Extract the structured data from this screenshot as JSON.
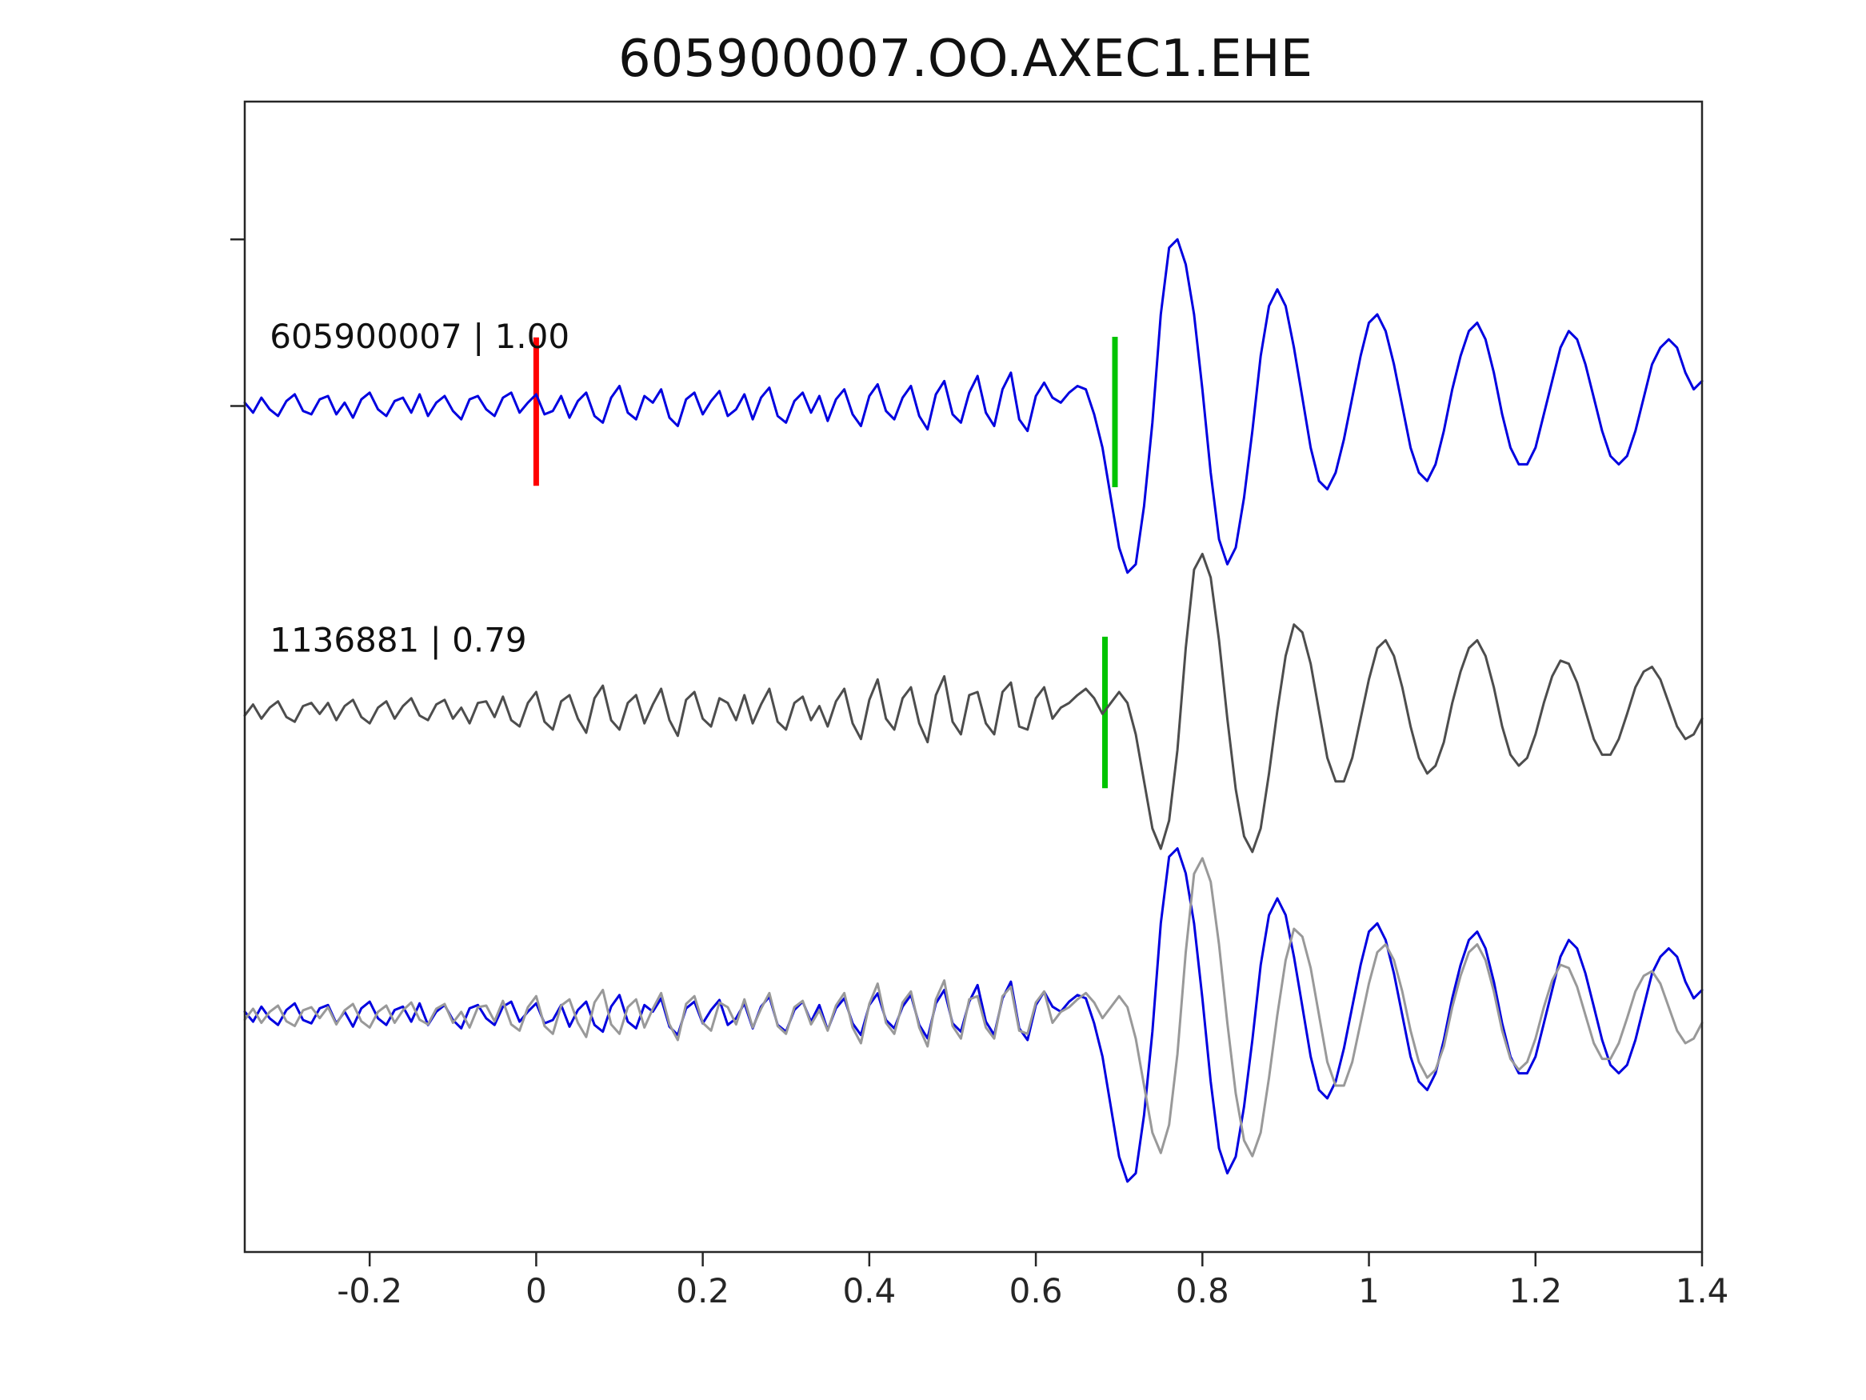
{
  "title": "605900007.OO.AXEC1.EHE",
  "chart_data": {
    "type": "line",
    "title": "605900007.OO.AXEC1.EHE",
    "xlabel": "",
    "ylabel": "",
    "xlim": [
      -0.35,
      1.4
    ],
    "grid": false,
    "axis_color": "#262626",
    "x_ticks": [
      {
        "value": -0.2,
        "label": "-0.2"
      },
      {
        "value": 0,
        "label": "0"
      },
      {
        "value": 0.2,
        "label": "0.2"
      },
      {
        "value": 0.4,
        "label": "0.4"
      },
      {
        "value": 0.6,
        "label": "0.6"
      },
      {
        "value": 0.8,
        "label": "0.8"
      },
      {
        "value": 1,
        "label": "1"
      },
      {
        "value": 1.2,
        "label": "1.2"
      },
      {
        "value": 1.4,
        "label": "1.4"
      }
    ],
    "y_tick_values": [
      1,
      0
    ],
    "traces": [
      {
        "id": "605900007",
        "label": "605900007 | 1.00",
        "color": "#0000e0",
        "baseline_frac": 0.29,
        "amplitude_frac": 0.119,
        "x0": -0.35,
        "dx": 0.01,
        "label_pos": {
          "x": -0.32,
          "y_frac": 0.2406
        },
        "values": [
          0.02,
          -0.04,
          0.05,
          -0.02,
          -0.06,
          0.03,
          0.07,
          -0.03,
          -0.05,
          0.04,
          0.06,
          -0.05,
          0.02,
          -0.07,
          0.04,
          0.08,
          -0.02,
          -0.06,
          0.03,
          0.05,
          -0.04,
          0.07,
          -0.06,
          0.02,
          0.06,
          -0.03,
          -0.08,
          0.04,
          0.06,
          -0.02,
          -0.06,
          0.05,
          0.08,
          -0.04,
          0.02,
          0.07,
          -0.05,
          -0.03,
          0.06,
          -0.07,
          0.03,
          0.08,
          -0.06,
          -0.1,
          0.05,
          0.12,
          -0.04,
          -0.08,
          0.06,
          0.02,
          0.1,
          -0.07,
          -0.12,
          0.04,
          0.08,
          -0.05,
          0.03,
          0.09,
          -0.06,
          -0.02,
          0.07,
          -0.08,
          0.05,
          0.11,
          -0.06,
          -0.1,
          0.03,
          0.08,
          -0.04,
          0.06,
          -0.09,
          0.04,
          0.1,
          -0.05,
          -0.12,
          0.06,
          0.13,
          -0.03,
          -0.08,
          0.05,
          0.12,
          -0.06,
          -0.14,
          0.07,
          0.15,
          -0.05,
          -0.1,
          0.08,
          0.18,
          -0.04,
          -0.12,
          0.1,
          0.2,
          -0.08,
          -0.15,
          0.06,
          0.14,
          0.05,
          0.02,
          0.08,
          0.12,
          0.1,
          -0.05,
          -0.25,
          -0.55,
          -0.85,
          -1.0,
          -0.95,
          -0.6,
          -0.1,
          0.55,
          0.95,
          1.0,
          0.85,
          0.55,
          0.1,
          -0.4,
          -0.8,
          -0.95,
          -0.85,
          -0.55,
          -0.15,
          0.3,
          0.6,
          0.7,
          0.6,
          0.35,
          0.05,
          -0.25,
          -0.45,
          -0.5,
          -0.4,
          -0.2,
          0.05,
          0.3,
          0.5,
          0.55,
          0.45,
          0.25,
          0.0,
          -0.25,
          -0.4,
          -0.45,
          -0.35,
          -0.15,
          0.1,
          0.3,
          0.45,
          0.5,
          0.4,
          0.2,
          -0.05,
          -0.25,
          -0.35,
          -0.35,
          -0.25,
          -0.05,
          0.15,
          0.35,
          0.45,
          0.4,
          0.25,
          0.05,
          -0.15,
          -0.3,
          -0.35,
          -0.3,
          -0.15,
          0.05,
          0.25,
          0.35,
          0.4,
          0.35,
          0.2,
          0.1,
          0.15
        ]
      },
      {
        "id": "1136881",
        "label": "1136881 | 0.79",
        "color": "#4d4d4d",
        "baseline_frac": 0.5077,
        "amplitude_frac": 0.112,
        "x0": -0.35,
        "dx": 0.01,
        "label_pos": {
          "x": -0.32,
          "y_frac": 0.4573
        },
        "values": [
          -0.03,
          0.04,
          -0.05,
          0.02,
          0.06,
          -0.04,
          -0.07,
          0.03,
          0.05,
          -0.02,
          0.05,
          -0.06,
          0.03,
          0.07,
          -0.04,
          -0.08,
          0.02,
          0.06,
          -0.05,
          0.03,
          0.08,
          -0.03,
          -0.06,
          0.04,
          0.07,
          -0.05,
          0.02,
          -0.08,
          0.05,
          0.06,
          -0.04,
          0.09,
          -0.06,
          -0.1,
          0.05,
          0.12,
          -0.07,
          -0.12,
          0.06,
          0.1,
          -0.05,
          -0.14,
          0.08,
          0.16,
          -0.06,
          -0.12,
          0.05,
          0.1,
          -0.08,
          0.04,
          0.14,
          -0.06,
          -0.16,
          0.07,
          0.12,
          -0.05,
          -0.1,
          0.08,
          0.05,
          -0.06,
          0.1,
          -0.08,
          0.04,
          0.14,
          -0.07,
          -0.12,
          0.05,
          0.09,
          -0.06,
          0.03,
          -0.1,
          0.06,
          0.14,
          -0.08,
          -0.18,
          0.07,
          0.2,
          -0.05,
          -0.12,
          0.08,
          0.15,
          -0.08,
          -0.2,
          0.1,
          0.22,
          -0.07,
          -0.15,
          0.1,
          0.12,
          -0.08,
          -0.15,
          0.12,
          0.18,
          -0.1,
          -0.12,
          0.08,
          0.15,
          -0.05,
          0.02,
          0.05,
          0.1,
          0.14,
          0.08,
          -0.02,
          0.05,
          0.12,
          0.05,
          -0.15,
          -0.45,
          -0.75,
          -0.88,
          -0.7,
          -0.25,
          0.4,
          0.9,
          1.0,
          0.85,
          0.45,
          -0.05,
          -0.5,
          -0.8,
          -0.9,
          -0.75,
          -0.4,
          0.0,
          0.35,
          0.55,
          0.5,
          0.3,
          0.0,
          -0.3,
          -0.45,
          -0.45,
          -0.3,
          -0.05,
          0.2,
          0.4,
          0.45,
          0.35,
          0.15,
          -0.1,
          -0.3,
          -0.4,
          -0.35,
          -0.2,
          0.05,
          0.25,
          0.4,
          0.45,
          0.35,
          0.15,
          -0.1,
          -0.28,
          -0.35,
          -0.3,
          -0.15,
          0.05,
          0.22,
          0.32,
          0.3,
          0.18,
          0.0,
          -0.18,
          -0.28,
          -0.28,
          -0.18,
          -0.02,
          0.15,
          0.25,
          0.28,
          0.2,
          0.05,
          -0.1,
          -0.18,
          -0.15,
          -0.05
        ]
      },
      {
        "id": "overlay-605900007",
        "label": "",
        "color": "#0000e0",
        "baseline_frac": 0.725,
        "amplitude_frac": 0.119,
        "x0": -0.35,
        "dx": 0.01,
        "values_from": 0
      },
      {
        "id": "overlay-1136881",
        "label": "",
        "color": "#999999",
        "baseline_frac": 0.725,
        "amplitude_frac": 0.112,
        "x0": -0.35,
        "dx": 0.01,
        "values_from": 1
      }
    ],
    "markers": [
      {
        "id": "pick-red",
        "color": "#ff0000",
        "x": 0.0,
        "y_top_frac": 0.241,
        "y_bottom_frac": 0.347
      },
      {
        "id": "pick-green-1",
        "color": "#00c400",
        "x": 0.695,
        "y_top_frac": 0.2406,
        "y_bottom_frac": 0.348
      },
      {
        "id": "pick-green-2",
        "color": "#00c400",
        "x": 0.683,
        "y_top_frac": 0.4548,
        "y_bottom_frac": 0.563
      }
    ]
  }
}
